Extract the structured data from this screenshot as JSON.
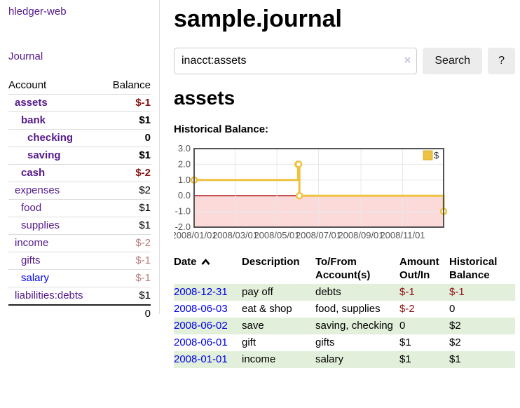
{
  "sidebar": {
    "app_title": "hledger-web",
    "journal_link": "Journal",
    "accounts_table": {
      "headers": [
        "Account",
        "Balance"
      ],
      "rows": [
        {
          "account": "assets",
          "balance": "$-1",
          "indent": 0,
          "bold": true,
          "link_color": "purple",
          "balance_class": "neg-strong"
        },
        {
          "account": "bank",
          "balance": "$1",
          "indent": 1,
          "bold": true,
          "link_color": "purple",
          "balance_class": ""
        },
        {
          "account": "checking",
          "balance": "0",
          "indent": 2,
          "bold": true,
          "link_color": "purple",
          "balance_class": ""
        },
        {
          "account": "saving",
          "balance": "$1",
          "indent": 2,
          "bold": true,
          "link_color": "purple",
          "balance_class": ""
        },
        {
          "account": "cash",
          "balance": "$-2",
          "indent": 1,
          "bold": true,
          "link_color": "purple",
          "balance_class": "neg-strong"
        },
        {
          "account": "expenses",
          "balance": "$2",
          "indent": 0,
          "bold": false,
          "link_color": "purple",
          "balance_class": ""
        },
        {
          "account": "food",
          "balance": "$1",
          "indent": 1,
          "bold": false,
          "link_color": "purple",
          "balance_class": ""
        },
        {
          "account": "supplies",
          "balance": "$1",
          "indent": 1,
          "bold": false,
          "link_color": "purple",
          "balance_class": ""
        },
        {
          "account": "income",
          "balance": "$-2",
          "indent": 0,
          "bold": false,
          "link_color": "purple",
          "balance_class": "neg-soft"
        },
        {
          "account": "gifts",
          "balance": "$-1",
          "indent": 1,
          "bold": false,
          "link_color": "purple",
          "balance_class": "neg-soft"
        },
        {
          "account": "salary",
          "balance": "$-1",
          "indent": 1,
          "bold": false,
          "link_color": "blue",
          "balance_class": "neg-soft"
        },
        {
          "account": "liabilities:debts",
          "balance": "$1",
          "indent": 0,
          "bold": false,
          "link_color": "purple",
          "balance_class": ""
        }
      ],
      "total": "0"
    }
  },
  "main": {
    "title": "sample.journal",
    "search": {
      "value": "inacct:assets",
      "clear_icon": "×",
      "button_label": "Search",
      "help_label": "?"
    },
    "account_heading": "assets",
    "chart_section_label": "Historical Balance:",
    "register_table": {
      "headers": [
        "Date",
        "Description",
        "To/From Account(s)",
        "Amount Out/In",
        "Historical Balance"
      ],
      "rows": [
        {
          "date": "2008-12-31",
          "description": "pay off",
          "accounts": "debts",
          "amount": "$-1",
          "amount_neg": true,
          "balance": "$-1",
          "balance_neg": true
        },
        {
          "date": "2008-06-03",
          "description": "eat & shop",
          "accounts": "food, supplies",
          "amount": "$-2",
          "amount_neg": true,
          "balance": "0",
          "balance_neg": false
        },
        {
          "date": "2008-06-02",
          "description": "save",
          "accounts": "saving, checking",
          "amount": "0",
          "amount_neg": false,
          "balance": "$2",
          "balance_neg": false
        },
        {
          "date": "2008-06-01",
          "description": "gift",
          "accounts": "gifts",
          "amount": "$1",
          "amount_neg": false,
          "balance": "$2",
          "balance_neg": false
        },
        {
          "date": "2008-01-01",
          "description": "income",
          "accounts": "salary",
          "amount": "$1",
          "amount_neg": false,
          "balance": "$1",
          "balance_neg": false
        }
      ]
    }
  },
  "chart_data": {
    "type": "line",
    "step": true,
    "title": "Historical Balance",
    "series": [
      {
        "name": "$",
        "color": "#edc240",
        "points": [
          [
            "2008-01-01",
            1
          ],
          [
            "2008-06-01",
            2
          ],
          [
            "2008-06-02",
            2
          ],
          [
            "2008-06-03",
            0
          ],
          [
            "2008-12-31",
            -1
          ]
        ]
      }
    ],
    "x_ticks": [
      "2008/01/01",
      "2008/03/01",
      "2008/05/01",
      "2008/07/01",
      "2008/09/01",
      "2008/11/01"
    ],
    "y_ticks": [
      "3.0",
      "2.0",
      "1.0",
      "0.0",
      "-1.0",
      "-2.0"
    ],
    "xlim": [
      "2008-01-01",
      "2008-12-31"
    ],
    "ylim": [
      -2,
      3
    ],
    "grid": true,
    "legend_position": "top-right",
    "negative_region_fill": "#fcdada",
    "zero_line_color": "#a40000",
    "gridline_color": "#e8e8e8",
    "border_color": "#545454",
    "tick_label_color": "#545454"
  }
}
